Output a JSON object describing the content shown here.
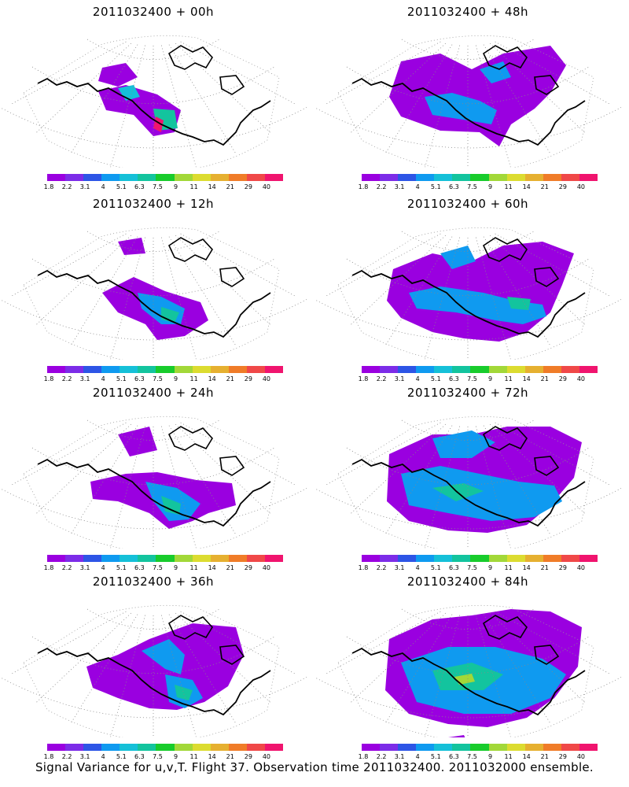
{
  "panels": [
    {
      "title": "2011032400  +  00h",
      "forecast_hour": 0
    },
    {
      "title": "2011032400  +  48h",
      "forecast_hour": 48
    },
    {
      "title": "2011032400  +  12h",
      "forecast_hour": 12
    },
    {
      "title": "2011032400  +  60h",
      "forecast_hour": 60
    },
    {
      "title": "2011032400  +  24h",
      "forecast_hour": 24
    },
    {
      "title": "2011032400  +  72h",
      "forecast_hour": 72
    },
    {
      "title": "2011032400  +  36h",
      "forecast_hour": 36
    },
    {
      "title": "2011032400  +  84h",
      "forecast_hour": 84
    }
  ],
  "colorbar": {
    "ticks": [
      "1.8",
      "2.2",
      "3.1",
      "4",
      "5.1",
      "6.3",
      "7.5",
      "9",
      "11",
      "14",
      "21",
      "29",
      "40"
    ],
    "colors": [
      "#9a00e0",
      "#7c2ce8",
      "#2d55e6",
      "#0f9af0",
      "#15c0d8",
      "#13c49e",
      "#18cc2c",
      "#a2d838",
      "#dcdc30",
      "#e6b030",
      "#f07c28",
      "#f04848",
      "#f0146e"
    ]
  },
  "caption": "Signal Variance for u,v,T. Flight 37. Observation time 2011032400. 2011032000 ensemble."
}
